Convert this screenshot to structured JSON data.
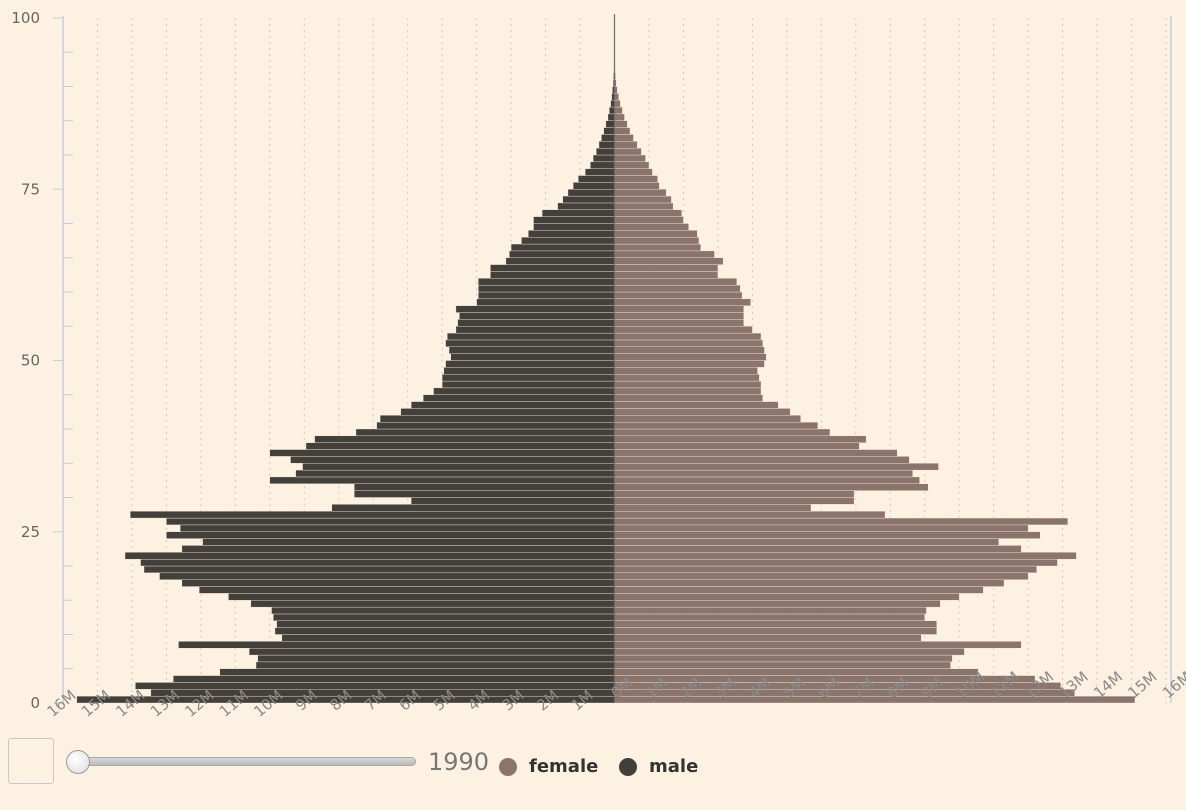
{
  "chart_data": {
    "type": "bar",
    "orientation": "horizontal-population-pyramid",
    "title": "",
    "xlabel": "",
    "ylabel": "",
    "y_axis": {
      "range": [
        0,
        100
      ],
      "ticks": [
        "0",
        "25",
        "50",
        "75",
        "100"
      ]
    },
    "x_ticks_left": [
      "16M",
      "15M",
      "14M",
      "13M",
      "12M",
      "11M",
      "10M",
      "9M",
      "8M",
      "7M",
      "6M",
      "5M",
      "4M",
      "3M",
      "2M",
      "1M"
    ],
    "x_ticks_right": [
      "0M",
      "1M",
      "2M",
      "3M",
      "4M",
      "5M",
      "6M",
      "7M",
      "8M",
      "9M",
      "10M",
      "11M",
      "12M",
      "13M",
      "14M",
      "15M",
      "16M"
    ],
    "grid": "vertical-dotted",
    "ages": [
      0,
      1,
      2,
      3,
      4,
      5,
      6,
      7,
      8,
      9,
      10,
      11,
      12,
      13,
      14,
      15,
      16,
      17,
      18,
      19,
      20,
      21,
      22,
      23,
      24,
      25,
      26,
      27,
      28,
      29,
      30,
      31,
      32,
      33,
      34,
      35,
      36,
      37,
      38,
      39,
      40,
      41,
      42,
      43,
      44,
      45,
      46,
      47,
      48,
      49,
      50,
      51,
      52,
      53,
      54,
      55,
      56,
      57,
      58,
      59,
      60,
      61,
      62,
      63,
      64,
      65,
      66,
      67,
      68,
      69,
      70,
      71,
      72,
      73,
      74,
      75,
      76,
      77,
      78,
      79,
      80,
      81,
      82,
      83,
      84,
      85,
      86,
      87,
      88,
      89,
      90,
      91,
      92,
      93,
      94,
      95,
      96,
      97,
      98,
      99,
      100
    ],
    "series": [
      {
        "name": "male",
        "color": "#43403c",
        "values": [
          15.6,
          13.45,
          13.9,
          12.8,
          11.45,
          10.4,
          10.35,
          10.6,
          12.65,
          9.65,
          9.85,
          9.8,
          9.9,
          9.95,
          10.55,
          11.2,
          12.05,
          12.55,
          13.2,
          13.65,
          13.75,
          14.2,
          12.55,
          11.95,
          13.0,
          12.6,
          13.0,
          14.05,
          8.2,
          5.9,
          7.55,
          7.55,
          10.0,
          9.25,
          9.05,
          9.4,
          10.0,
          8.95,
          8.7,
          7.5,
          6.9,
          6.8,
          6.2,
          5.9,
          5.55,
          5.25,
          5.0,
          5.0,
          4.95,
          4.9,
          4.75,
          4.8,
          4.9,
          4.85,
          4.6,
          4.55,
          4.5,
          4.6,
          4.0,
          3.95,
          3.95,
          3.95,
          3.6,
          3.6,
          3.15,
          3.05,
          3.0,
          2.7,
          2.5,
          2.35,
          2.35,
          2.1,
          1.65,
          1.5,
          1.35,
          1.2,
          1.05,
          0.85,
          0.7,
          0.62,
          0.53,
          0.45,
          0.38,
          0.31,
          0.25,
          0.19,
          0.15,
          0.11,
          0.08,
          0.06,
          0.04,
          0.03,
          0.02,
          0.01,
          0.01,
          0.01,
          0.0,
          0.0,
          0.0,
          0.0,
          0.0
        ]
      },
      {
        "name": "female",
        "color": "#8a746c",
        "values": [
          15.1,
          13.35,
          12.95,
          12.2,
          10.55,
          9.75,
          9.8,
          10.15,
          11.8,
          8.9,
          9.35,
          9.35,
          9.0,
          9.05,
          9.45,
          10.0,
          10.7,
          11.3,
          12.0,
          12.25,
          12.85,
          13.4,
          11.8,
          11.15,
          12.35,
          12.0,
          13.15,
          7.85,
          5.7,
          6.95,
          6.95,
          9.1,
          8.85,
          8.65,
          9.4,
          8.55,
          8.2,
          7.1,
          7.3,
          6.25,
          5.9,
          5.4,
          5.1,
          4.75,
          4.3,
          4.25,
          4.25,
          4.2,
          4.15,
          4.35,
          4.4,
          4.35,
          4.3,
          4.25,
          4.0,
          3.75,
          3.75,
          3.75,
          3.95,
          3.7,
          3.65,
          3.55,
          3.0,
          3.0,
          3.15,
          2.9,
          2.5,
          2.45,
          2.4,
          2.15,
          2.0,
          1.95,
          1.7,
          1.65,
          1.5,
          1.3,
          1.25,
          1.1,
          1.0,
          0.9,
          0.78,
          0.66,
          0.55,
          0.45,
          0.37,
          0.29,
          0.23,
          0.17,
          0.12,
          0.08,
          0.05,
          0.03,
          0.02,
          0.01,
          0.01,
          0.0,
          0.0,
          0.0,
          0.0,
          0.0,
          0.0
        ]
      }
    ]
  },
  "controls": {
    "play_button": "",
    "year": "1990",
    "slider_value": 1990
  },
  "legend": {
    "placement": "bottom",
    "items": [
      {
        "label": "female",
        "color": "#8a746c"
      },
      {
        "label": "male",
        "color": "#43403c"
      }
    ]
  }
}
